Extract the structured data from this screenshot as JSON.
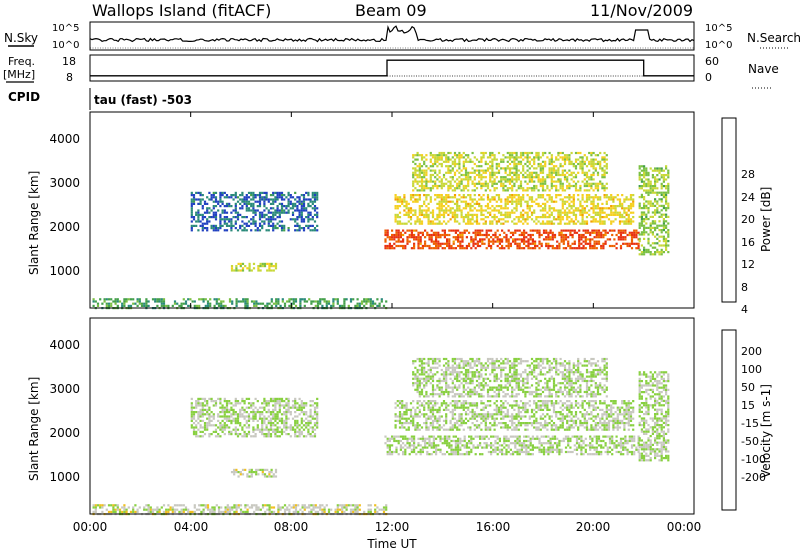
{
  "header": {
    "title": "Wallops Island (fitACF)",
    "beam": "Beam 09",
    "date": "11/Nov/2009"
  },
  "noise_panel": {
    "left_label": "N.Sky",
    "right_label": "N.Search",
    "left_ticks": [
      "10^5",
      "10^0"
    ],
    "right_ticks": [
      "10^5",
      "10^0"
    ]
  },
  "freq_panel": {
    "left_label_1": "Freq.",
    "left_label_2": "[MHz]",
    "left_ticks": [
      "18",
      "8"
    ],
    "right_label": "Nave",
    "right_ticks": [
      "60",
      "0"
    ]
  },
  "cpid_panel": {
    "label": "CPID",
    "value": "tau (fast) -503"
  },
  "x_axis": {
    "label": "Time UT",
    "ticks": [
      "00:00",
      "04:00",
      "08:00",
      "12:00",
      "16:00",
      "20:00",
      "00:00"
    ]
  },
  "power_panel": {
    "ylabel": "Slant Range [km]",
    "yticks": [
      "4000",
      "3000",
      "2000",
      "1000"
    ],
    "colorbar": {
      "label": "Power [dB]",
      "ticks": [
        "28",
        "24",
        "20",
        "16",
        "12",
        "8",
        "4"
      ],
      "colors": [
        "#0000ff",
        "#2040c0",
        "#2a8a7a",
        "#44a04a",
        "#7bc043",
        "#c8d838",
        "#f5d020",
        "#f3a000",
        "#ee6000",
        "#e83010",
        "#e00000"
      ]
    }
  },
  "velocity_panel": {
    "ylabel": "Slant Range [km]",
    "yticks": [
      "4000",
      "3000",
      "2000",
      "1000"
    ],
    "colorbar": {
      "label": "Velocity [m s-1]",
      "ticks": [
        "200",
        "100",
        "50",
        "15",
        "-15",
        "-50",
        "-100",
        "-200"
      ],
      "colors": [
        "#0020a0",
        "#2050b0",
        "#2e8040",
        "#50a040",
        "#88d040",
        "#c8c8c0",
        "#f0c020",
        "#f08000",
        "#f04000",
        "#e00000"
      ]
    }
  },
  "chart_data": {
    "type": "heatmap",
    "title": "Wallops Island (fitACF)",
    "xlabel": "Time UT",
    "xlim": [
      0,
      24
    ],
    "panels": [
      {
        "name": "Power",
        "ylabel": "Slant Range [km]",
        "ylim": [
          180,
          4600
        ],
        "zlabel": "Power [dB]",
        "zlim": [
          0,
          32
        ],
        "regions": [
          {
            "t": [
              0.1,
              11.8
            ],
            "r": [
              200,
              400
            ],
            "z": 10
          },
          {
            "t": [
              5.6,
              7.4
            ],
            "r": [
              1050,
              1200
            ],
            "z": 16
          },
          {
            "t": [
              4.0,
              9.0
            ],
            "r": [
              1950,
              2800
            ],
            "z": 6
          },
          {
            "t": [
              11.7,
              21.8
            ],
            "r": [
              1550,
              1950
            ],
            "z": 26
          },
          {
            "t": [
              12.1,
              21.6
            ],
            "r": [
              2100,
              2750
            ],
            "z": 18
          },
          {
            "t": [
              12.8,
              20.5
            ],
            "r": [
              2850,
              3700
            ],
            "z": 16
          },
          {
            "t": [
              21.8,
              23.0
            ],
            "r": [
              1400,
              3400
            ],
            "z": 14
          }
        ]
      },
      {
        "name": "Velocity",
        "ylabel": "Slant Range [km]",
        "ylim": [
          180,
          4600
        ],
        "zlabel": "Velocity [m s-1]",
        "zlim": [
          -250,
          250
        ],
        "regions": [
          {
            "t": [
              0.1,
              11.8
            ],
            "r": [
              200,
              400
            ],
            "z": -20
          },
          {
            "t": [
              5.6,
              7.4
            ],
            "r": [
              1050,
              1200
            ],
            "z": -10
          },
          {
            "t": [
              4.0,
              9.0
            ],
            "r": [
              1950,
              2800
            ],
            "z": 0
          },
          {
            "t": [
              11.7,
              21.8
            ],
            "r": [
              1550,
              1950
            ],
            "z": 0
          },
          {
            "t": [
              12.1,
              21.6
            ],
            "r": [
              2100,
              2750
            ],
            "z": 0
          },
          {
            "t": [
              12.8,
              20.5
            ],
            "r": [
              2850,
              3700
            ],
            "z": 0
          },
          {
            "t": [
              21.8,
              23.0
            ],
            "r": [
              1400,
              3400
            ],
            "z": 0
          }
        ]
      }
    ],
    "frequency_MHz": [
      {
        "t": [
          0,
          11.8
        ],
        "value": 10
      },
      {
        "t": [
          11.8,
          22.0
        ],
        "value": 16
      },
      {
        "t": [
          22.0,
          24
        ],
        "value": 10
      }
    ]
  }
}
